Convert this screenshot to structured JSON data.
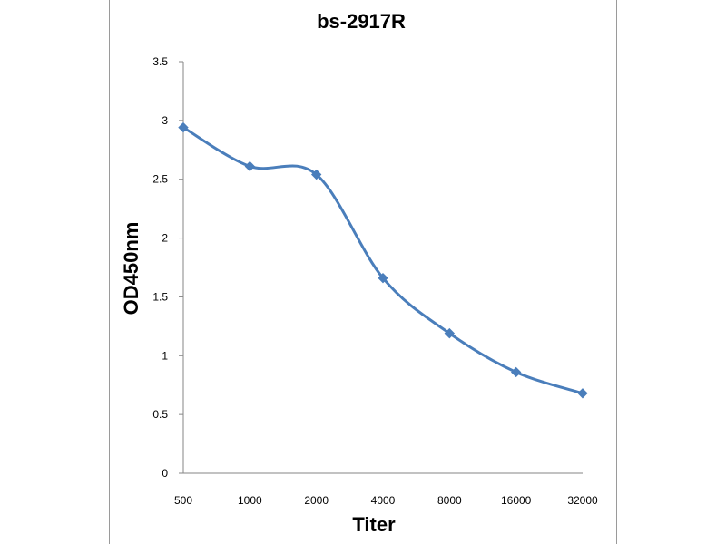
{
  "chart_data": {
    "type": "line",
    "title": "bs-2917R",
    "xlabel": "Titer",
    "ylabel": "OD450nm",
    "categories": [
      "500",
      "1000",
      "2000",
      "4000",
      "8000",
      "16000",
      "32000"
    ],
    "series": [
      {
        "values": [
          2.94,
          2.61,
          2.54,
          1.66,
          1.19,
          0.86,
          0.68
        ]
      }
    ],
    "ylim": [
      0,
      3.5
    ],
    "yticks": [
      "0",
      "0.5",
      "1",
      "1.5",
      "2",
      "2.5",
      "3",
      "3.5"
    ],
    "grid": false,
    "legend": "none",
    "colors": {
      "line": "#4a7ebb",
      "marker": "#4a7ebb",
      "axis": "#868686"
    }
  }
}
